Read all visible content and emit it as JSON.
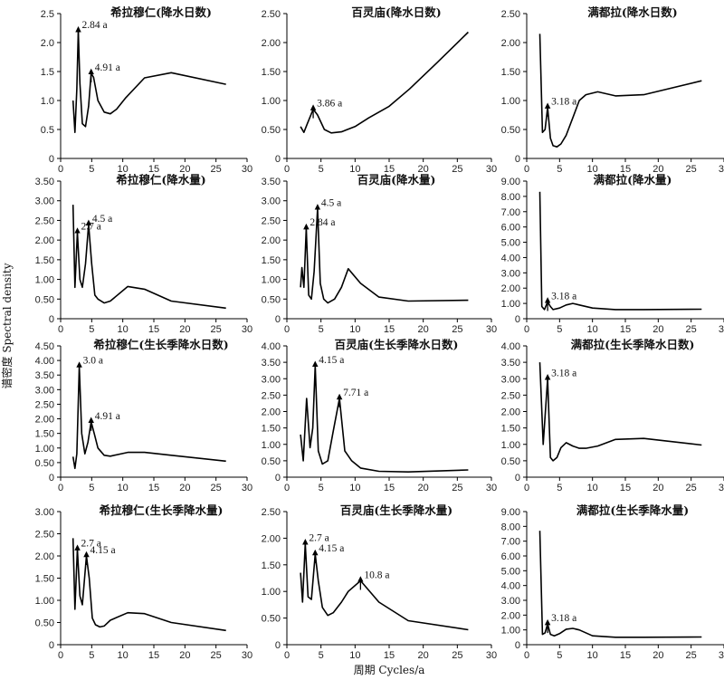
{
  "labels": {
    "ylabel": "谱密度 Spectral density",
    "xlabel": "周期 Cycles/a"
  },
  "chart_data": [
    {
      "type": "line",
      "title": "希拉穆仁(降水日数)",
      "xlim": [
        0,
        30
      ],
      "ylim": [
        0,
        2.5
      ],
      "yticks": [
        "0",
        "0.5",
        "1.0",
        "1.5",
        "2.0",
        "2.5"
      ],
      "xticks": [
        "0",
        "5",
        "10",
        "15",
        "20",
        "25",
        "30"
      ],
      "x": [
        2.0,
        2.3,
        2.6,
        2.84,
        3.1,
        3.5,
        4.0,
        4.5,
        4.91,
        5.3,
        6.0,
        7.0,
        8.0,
        9.0,
        10.5,
        13.5,
        17.8,
        26.6
      ],
      "y": [
        1.0,
        0.45,
        1.2,
        2.2,
        1.3,
        0.6,
        0.55,
        0.9,
        1.47,
        1.4,
        1.0,
        0.8,
        0.77,
        0.85,
        1.05,
        1.39,
        1.48,
        1.28
      ],
      "annotations": [
        {
          "x": 2.84,
          "y": 2.2,
          "text": "2.84 a"
        },
        {
          "x": 4.91,
          "y": 1.47,
          "text": "4.91 a"
        }
      ]
    },
    {
      "type": "line",
      "title": "百灵庙(降水日数)",
      "xlim": [
        0,
        30
      ],
      "ylim": [
        0,
        2.5
      ],
      "yticks": [
        "0",
        "0.50",
        "1.00",
        "1.50",
        "2.00",
        "2.50"
      ],
      "xticks": [
        "0",
        "5",
        "10",
        "15",
        "20",
        "25",
        "30"
      ],
      "x": [
        2.0,
        2.5,
        3.0,
        3.86,
        4.5,
        5.5,
        6.5,
        8.0,
        10.0,
        12.0,
        15.0,
        18.0,
        22.0,
        26.6
      ],
      "y": [
        0.55,
        0.45,
        0.6,
        0.85,
        0.75,
        0.5,
        0.44,
        0.46,
        0.55,
        0.7,
        0.9,
        1.2,
        1.65,
        2.18
      ],
      "annotations": [
        {
          "x": 3.86,
          "y": 0.85,
          "text": "3.86 a"
        }
      ]
    },
    {
      "type": "line",
      "title": "满都拉(降水日数)",
      "xlim": [
        0,
        30
      ],
      "ylim": [
        0,
        2.5
      ],
      "yticks": [
        "0",
        "0.50",
        "1.00",
        "1.50",
        "2.00",
        "2.50"
      ],
      "xticks": [
        "0",
        "5",
        "10",
        "15",
        "20",
        "25",
        "30"
      ],
      "x": [
        2.0,
        2.4,
        2.8,
        3.18,
        3.6,
        4.0,
        4.6,
        5.2,
        6.0,
        7.0,
        8.0,
        9.0,
        10.8,
        13.5,
        17.8,
        26.6
      ],
      "y": [
        2.15,
        0.45,
        0.5,
        0.88,
        0.35,
        0.22,
        0.2,
        0.25,
        0.4,
        0.7,
        1.0,
        1.1,
        1.15,
        1.08,
        1.1,
        1.34
      ],
      "annotations": [
        {
          "x": 3.18,
          "y": 0.88,
          "text": "3.18 a"
        }
      ]
    },
    {
      "type": "line",
      "title": "希拉穆仁(降水量)",
      "xlim": [
        0,
        30
      ],
      "ylim": [
        0,
        3.5
      ],
      "yticks": [
        "0",
        "0.50",
        "1.00",
        "1.50",
        "2.00",
        "2.50",
        "3.00",
        "3.50"
      ],
      "xticks": [
        "0",
        "5",
        "10",
        "15",
        "20",
        "25",
        "30"
      ],
      "x": [
        2.0,
        2.3,
        2.7,
        3.1,
        3.5,
        4.0,
        4.5,
        5.0,
        5.5,
        6.0,
        7.0,
        8.0,
        10.8,
        13.5,
        17.8,
        26.6
      ],
      "y": [
        2.9,
        0.8,
        2.2,
        1.0,
        0.8,
        1.4,
        2.4,
        1.4,
        0.6,
        0.5,
        0.4,
        0.45,
        0.82,
        0.75,
        0.45,
        0.27
      ],
      "annotations": [
        {
          "x": 2.7,
          "y": 2.2,
          "text": "2.7 a"
        },
        {
          "x": 4.5,
          "y": 2.4,
          "text": "4.5 a"
        }
      ]
    },
    {
      "type": "line",
      "title": "百灵庙(降水量)",
      "xlim": [
        0,
        30
      ],
      "ylim": [
        0,
        3.5
      ],
      "yticks": [
        "0",
        "0.50",
        "1.00",
        "1.50",
        "2.00",
        "2.50",
        "3.00",
        "3.50"
      ],
      "xticks": [
        "0",
        "5",
        "10",
        "15",
        "20",
        "25",
        "30"
      ],
      "x": [
        2.0,
        2.2,
        2.5,
        2.84,
        3.2,
        3.6,
        4.0,
        4.5,
        4.9,
        5.4,
        6.0,
        7.0,
        8.0,
        9.0,
        10.8,
        13.5,
        17.8,
        26.6
      ],
      "y": [
        0.8,
        1.3,
        0.8,
        2.3,
        0.6,
        0.5,
        1.2,
        2.8,
        0.9,
        0.5,
        0.4,
        0.5,
        0.8,
        1.27,
        0.9,
        0.55,
        0.45,
        0.47
      ],
      "annotations": [
        {
          "x": 2.84,
          "y": 2.3,
          "text": "2.84 a"
        },
        {
          "x": 4.5,
          "y": 2.8,
          "text": "4.5 a"
        }
      ]
    },
    {
      "type": "line",
      "title": "满都拉(降水量)",
      "xlim": [
        0,
        30
      ],
      "ylim": [
        0,
        9.0
      ],
      "yticks": [
        "0",
        "1.00",
        "2.00",
        "3.00",
        "4.00",
        "5.00",
        "6.00",
        "7.00",
        "8.00",
        "9.00"
      ],
      "xticks": [
        "0",
        "5",
        "10",
        "15",
        "20",
        "25",
        "30"
      ],
      "x": [
        2.0,
        2.3,
        2.7,
        3.18,
        3.6,
        4.0,
        5.0,
        6.0,
        7.0,
        8.0,
        10.0,
        13.5,
        17.8,
        26.6
      ],
      "y": [
        8.3,
        0.8,
        0.6,
        1.1,
        0.8,
        0.6,
        0.7,
        0.9,
        1.0,
        0.9,
        0.7,
        0.6,
        0.6,
        0.62
      ],
      "annotations": [
        {
          "x": 3.18,
          "y": 1.1,
          "text": "3.18 a"
        }
      ]
    },
    {
      "type": "line",
      "title": "希拉穆仁(生长季降水日数)",
      "xlim": [
        0,
        30
      ],
      "ylim": [
        0,
        4.5
      ],
      "yticks": [
        "0",
        "0.50",
        "1.00",
        "1.50",
        "2.00",
        "2.50",
        "3.00",
        "3.50",
        "4.00",
        "4.50"
      ],
      "xticks": [
        "0",
        "5",
        "10",
        "15",
        "20",
        "25",
        "30"
      ],
      "x": [
        2.0,
        2.3,
        2.6,
        3.0,
        3.4,
        3.9,
        4.4,
        4.91,
        5.4,
        6.0,
        7.0,
        8.0,
        10.8,
        13.5,
        17.8,
        26.6
      ],
      "y": [
        0.7,
        0.3,
        0.8,
        3.8,
        1.5,
        0.8,
        1.2,
        1.9,
        1.5,
        1.0,
        0.75,
        0.72,
        0.85,
        0.85,
        0.75,
        0.55
      ],
      "annotations": [
        {
          "x": 3.0,
          "y": 3.8,
          "text": "3.0 a"
        },
        {
          "x": 4.91,
          "y": 1.9,
          "text": "4.91 a"
        }
      ]
    },
    {
      "type": "line",
      "title": "百灵庙(生长季降水日数)",
      "xlim": [
        0,
        30
      ],
      "ylim": [
        0,
        4.0
      ],
      "yticks": [
        "0",
        "0.50",
        "1.00",
        "1.50",
        "2.00",
        "2.50",
        "3.00",
        "3.50",
        "4.00"
      ],
      "xticks": [
        "0",
        "5",
        "10",
        "15",
        "20",
        "25",
        "30"
      ],
      "x": [
        2.0,
        2.4,
        2.9,
        3.4,
        3.8,
        4.15,
        4.6,
        5.2,
        6.0,
        6.8,
        7.71,
        8.5,
        9.5,
        10.8,
        13.5,
        17.8,
        26.6
      ],
      "y": [
        1.3,
        0.5,
        2.4,
        0.9,
        1.5,
        3.4,
        0.8,
        0.4,
        0.5,
        1.4,
        2.4,
        0.8,
        0.5,
        0.28,
        0.18,
        0.16,
        0.22
      ],
      "annotations": [
        {
          "x": 4.15,
          "y": 3.4,
          "text": "4.15 a"
        },
        {
          "x": 7.71,
          "y": 2.4,
          "text": "7.71 a"
        }
      ]
    },
    {
      "type": "line",
      "title": "满都拉(生长季降水日数)",
      "xlim": [
        0,
        30
      ],
      "ylim": [
        0,
        4.0
      ],
      "yticks": [
        "0",
        "0.50",
        "1.00",
        "1.50",
        "2.00",
        "2.50",
        "3.00",
        "3.50",
        "4.00"
      ],
      "xticks": [
        "0",
        "5",
        "10",
        "15",
        "20",
        "25",
        "30"
      ],
      "x": [
        2.0,
        2.5,
        3.18,
        3.6,
        4.0,
        4.6,
        5.2,
        6.0,
        7.0,
        8.0,
        9.0,
        10.8,
        13.5,
        17.8,
        26.6
      ],
      "y": [
        3.5,
        1.0,
        3.0,
        0.6,
        0.5,
        0.6,
        0.9,
        1.05,
        0.95,
        0.88,
        0.88,
        0.95,
        1.15,
        1.18,
        0.98
      ],
      "annotations": [
        {
          "x": 3.18,
          "y": 3.0,
          "text": "3.18 a"
        }
      ]
    },
    {
      "type": "line",
      "title": "希拉穆仁(生长季降水量)",
      "xlim": [
        0,
        30
      ],
      "ylim": [
        0,
        3.0
      ],
      "yticks": [
        "0",
        "0.50",
        "1.00",
        "1.50",
        "2.00",
        "2.50",
        "3.00"
      ],
      "xticks": [
        "0",
        "5",
        "10",
        "15",
        "20",
        "25",
        "30"
      ],
      "x": [
        2.0,
        2.3,
        2.7,
        3.1,
        3.5,
        4.15,
        4.6,
        5.1,
        5.6,
        6.3,
        7.0,
        8.0,
        10.8,
        13.5,
        17.8,
        26.6
      ],
      "y": [
        2.4,
        0.8,
        2.15,
        1.1,
        0.9,
        2.0,
        1.5,
        0.6,
        0.45,
        0.4,
        0.42,
        0.55,
        0.72,
        0.7,
        0.5,
        0.32
      ],
      "annotations": [
        {
          "x": 2.7,
          "y": 2.15,
          "text": "2.7 a"
        },
        {
          "x": 4.15,
          "y": 2.0,
          "text": "4.15 a"
        }
      ]
    },
    {
      "type": "line",
      "title": "百灵庙(生长季降水量)",
      "xlim": [
        0,
        30
      ],
      "ylim": [
        0,
        2.5
      ],
      "yticks": [
        "0",
        "0.50",
        "1.00",
        "1.50",
        "2.00",
        "2.50"
      ],
      "xticks": [
        "0",
        "5",
        "10",
        "15",
        "20",
        "25",
        "30"
      ],
      "x": [
        2.0,
        2.3,
        2.7,
        3.1,
        3.6,
        4.15,
        4.6,
        5.2,
        6.0,
        6.8,
        8.0,
        9.0,
        10.8,
        13.5,
        17.8,
        26.6
      ],
      "y": [
        1.35,
        0.8,
        1.9,
        0.9,
        0.85,
        1.7,
        1.2,
        0.7,
        0.55,
        0.6,
        0.8,
        1.0,
        1.2,
        0.8,
        0.45,
        0.28
      ],
      "annotations": [
        {
          "x": 2.7,
          "y": 1.9,
          "text": "2.7 a"
        },
        {
          "x": 4.15,
          "y": 1.7,
          "text": "4.15 a"
        },
        {
          "x": 10.8,
          "y": 1.2,
          "text": "10.8 a"
        }
      ]
    },
    {
      "type": "line",
      "title": "满都拉(生长季降水量)",
      "xlim": [
        0,
        30
      ],
      "ylim": [
        0,
        9.0
      ],
      "yticks": [
        "0",
        "1.00",
        "2.00",
        "3.00",
        "4.00",
        "5.00",
        "6.00",
        "7.00",
        "8.00",
        "9.00"
      ],
      "xticks": [
        "0",
        "5",
        "10",
        "15",
        "20",
        "25",
        "30"
      ],
      "x": [
        2.0,
        2.4,
        2.8,
        3.18,
        3.6,
        4.2,
        5.0,
        6.0,
        7.0,
        8.0,
        10.0,
        13.5,
        17.8,
        26.6
      ],
      "y": [
        7.7,
        0.7,
        0.8,
        1.4,
        0.7,
        0.6,
        0.75,
        1.05,
        1.1,
        1.0,
        0.6,
        0.5,
        0.5,
        0.52
      ],
      "annotations": [
        {
          "x": 3.18,
          "y": 1.4,
          "text": "3.18 a"
        }
      ]
    }
  ]
}
